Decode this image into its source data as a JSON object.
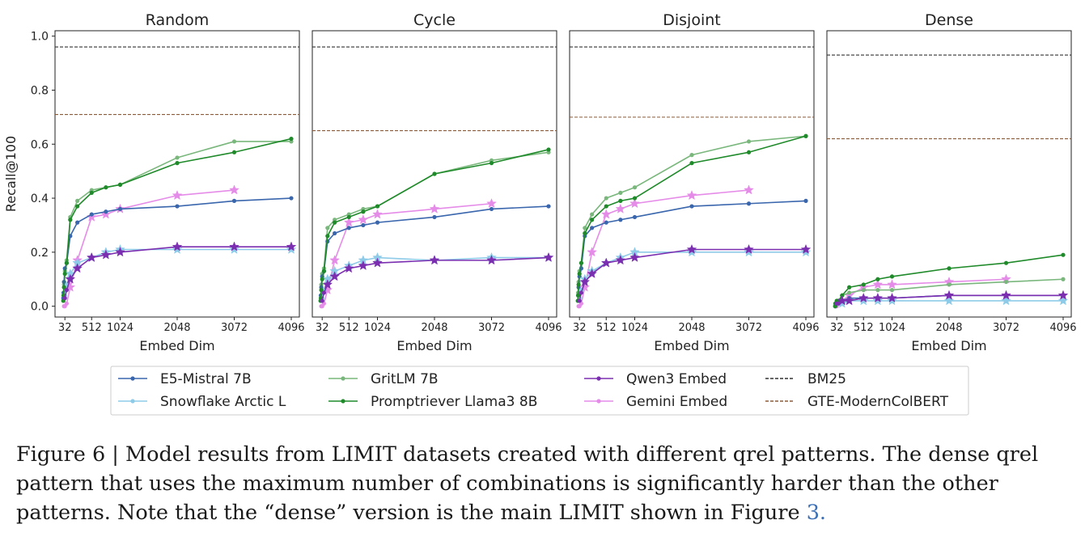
{
  "figure": {
    "caption_lines": [
      "Figure 6 | Model results from LIMIT datasets created with different qrel patterns. The dense qrel",
      "pattern that uses the maximum number of combinations is significantly harder than the other",
      "patterns. Note that the “dense” version is the main LIMIT shown in Figure "
    ],
    "caption_ref": "3."
  },
  "chart_data": {
    "type": "line",
    "ylabel": "Recall@100",
    "xlabel": "Embed Dim",
    "ylim": [
      0,
      1.0
    ],
    "xlim": [
      0,
      4096
    ],
    "yticks": [
      0.0,
      0.2,
      0.4,
      0.6,
      0.8,
      1.0
    ],
    "yticklabels": [
      "0.0",
      "0.2",
      "0.4",
      "0.6",
      "0.8",
      "1.0"
    ],
    "xticks": [
      32,
      512,
      1024,
      2048,
      3072,
      4096
    ],
    "xticklabels": [
      "32",
      "512",
      "1024",
      "2048",
      "3072",
      "4096"
    ],
    "grid": false,
    "legend_placement": "bottom",
    "legend": [
      {
        "name": "E5-Mistral 7B",
        "color": "#3a66ad",
        "style": "solid",
        "marker": "dot"
      },
      {
        "name": "Snowflake Arctic L",
        "color": "#8ecbe8",
        "style": "solid",
        "marker": "dot"
      },
      {
        "name": "GritLM 7B",
        "color": "#79b77c",
        "style": "solid",
        "marker": "dot"
      },
      {
        "name": "Promptriever Llama3 8B",
        "color": "#1f8a2a",
        "style": "solid",
        "marker": "dot"
      },
      {
        "name": "Qwen3 Embed",
        "color": "#7b2fb0",
        "style": "solid",
        "marker": "dot"
      },
      {
        "name": "Gemini Embed",
        "color": "#e58be8",
        "style": "solid",
        "marker": "dot"
      },
      {
        "name": "BM25",
        "color": "#333333",
        "style": "dashed",
        "marker": "none"
      },
      {
        "name": "GTE-ModernColBERT",
        "color": "#8a5c3a",
        "style": "dashed",
        "marker": "none"
      }
    ],
    "panels": [
      {
        "title": "Random",
        "series": [
          {
            "name": "E5-Mistral 7B",
            "x": [
              4,
              8,
              16,
              32,
              64,
              128,
              256,
              512,
              768,
              1024,
              2048,
              3072,
              4096
            ],
            "values": [
              0.03,
              0.05,
              0.09,
              0.14,
              0.16,
              0.26,
              0.31,
              0.34,
              0.35,
              0.36,
              0.37,
              0.39,
              0.4
            ]
          },
          {
            "name": "Snowflake Arctic L",
            "x": [
              32,
              64,
              128,
              256,
              512,
              768,
              1024,
              2048,
              3072,
              4096
            ],
            "values": [
              0.04,
              0.08,
              0.12,
              0.16,
              0.18,
              0.2,
              0.21,
              0.21,
              0.21,
              0.21
            ]
          },
          {
            "name": "GritLM 7B",
            "x": [
              4,
              8,
              16,
              32,
              64,
              128,
              256,
              512,
              768,
              1024,
              2048,
              3072,
              4096
            ],
            "values": [
              0.02,
              0.04,
              0.08,
              0.13,
              0.17,
              0.33,
              0.39,
              0.43,
              0.44,
              0.45,
              0.55,
              0.61,
              0.61
            ]
          },
          {
            "name": "Promptriever Llama3 8B",
            "x": [
              4,
              8,
              16,
              32,
              64,
              128,
              256,
              512,
              768,
              1024,
              2048,
              3072,
              4096
            ],
            "values": [
              0.02,
              0.04,
              0.07,
              0.12,
              0.16,
              0.32,
              0.37,
              0.42,
              0.44,
              0.45,
              0.53,
              0.57,
              0.62
            ]
          },
          {
            "name": "Qwen3 Embed",
            "x": [
              32,
              64,
              128,
              256,
              512,
              768,
              1024,
              2048,
              3072,
              4096
            ],
            "values": [
              0.03,
              0.06,
              0.1,
              0.14,
              0.18,
              0.19,
              0.2,
              0.22,
              0.22,
              0.22
            ]
          },
          {
            "name": "Gemini Embed",
            "x": [
              16,
              32,
              64,
              128,
              256,
              512,
              768,
              1024,
              2048,
              3072
            ],
            "values": [
              0.0,
              0.0,
              0.01,
              0.07,
              0.17,
              0.33,
              0.34,
              0.36,
              0.41,
              0.43
            ]
          }
        ],
        "baselines": [
          {
            "name": "BM25",
            "value": 0.96
          },
          {
            "name": "GTE-ModernColBERT",
            "value": 0.71
          }
        ]
      },
      {
        "title": "Cycle",
        "series": [
          {
            "name": "E5-Mistral 7B",
            "x": [
              4,
              8,
              16,
              32,
              64,
              128,
              256,
              512,
              768,
              1024,
              2048,
              3072,
              4096
            ],
            "values": [
              0.02,
              0.04,
              0.07,
              0.11,
              0.13,
              0.24,
              0.27,
              0.29,
              0.3,
              0.31,
              0.33,
              0.36,
              0.37
            ]
          },
          {
            "name": "Snowflake Arctic L",
            "x": [
              32,
              64,
              128,
              256,
              512,
              768,
              1024,
              2048,
              3072,
              4096
            ],
            "values": [
              0.03,
              0.06,
              0.1,
              0.13,
              0.15,
              0.17,
              0.18,
              0.17,
              0.18,
              0.18
            ]
          },
          {
            "name": "GritLM 7B",
            "x": [
              4,
              8,
              16,
              32,
              64,
              128,
              256,
              512,
              768,
              1024,
              2048,
              3072,
              4096
            ],
            "values": [
              0.02,
              0.04,
              0.08,
              0.12,
              0.14,
              0.29,
              0.32,
              0.34,
              0.36,
              0.37,
              0.49,
              0.54,
              0.57
            ]
          },
          {
            "name": "Promptriever Llama3 8B",
            "x": [
              4,
              8,
              16,
              32,
              64,
              128,
              256,
              512,
              768,
              1024,
              2048,
              3072,
              4096
            ],
            "values": [
              0.02,
              0.03,
              0.06,
              0.1,
              0.13,
              0.26,
              0.31,
              0.33,
              0.35,
              0.37,
              0.49,
              0.53,
              0.58
            ]
          },
          {
            "name": "Qwen3 Embed",
            "x": [
              32,
              64,
              128,
              256,
              512,
              768,
              1024,
              2048,
              3072,
              4096
            ],
            "values": [
              0.02,
              0.05,
              0.08,
              0.11,
              0.14,
              0.15,
              0.16,
              0.17,
              0.17,
              0.18
            ]
          },
          {
            "name": "Gemini Embed",
            "x": [
              16,
              32,
              64,
              128,
              256,
              512,
              768,
              1024,
              2048,
              3072
            ],
            "values": [
              0.0,
              0.0,
              0.01,
              0.06,
              0.17,
              0.31,
              0.32,
              0.34,
              0.36,
              0.38
            ]
          }
        ],
        "baselines": [
          {
            "name": "BM25",
            "value": 0.96
          },
          {
            "name": "GTE-ModernColBERT",
            "value": 0.65
          }
        ]
      },
      {
        "title": "Disjoint",
        "series": [
          {
            "name": "E5-Mistral 7B",
            "x": [
              4,
              8,
              16,
              32,
              64,
              128,
              256,
              512,
              768,
              1024,
              2048,
              3072,
              4096
            ],
            "values": [
              0.02,
              0.04,
              0.07,
              0.11,
              0.14,
              0.26,
              0.29,
              0.31,
              0.32,
              0.33,
              0.37,
              0.38,
              0.39
            ]
          },
          {
            "name": "Snowflake Arctic L",
            "x": [
              32,
              64,
              128,
              256,
              512,
              768,
              1024,
              2048,
              3072,
              4096
            ],
            "values": [
              0.03,
              0.06,
              0.1,
              0.13,
              0.16,
              0.18,
              0.2,
              0.2,
              0.2,
              0.2
            ]
          },
          {
            "name": "GritLM 7B",
            "x": [
              4,
              8,
              16,
              32,
              64,
              128,
              256,
              512,
              768,
              1024,
              2048,
              3072,
              4096
            ],
            "values": [
              0.02,
              0.05,
              0.09,
              0.13,
              0.16,
              0.29,
              0.34,
              0.4,
              0.42,
              0.44,
              0.56,
              0.61,
              0.63
            ]
          },
          {
            "name": "Promptriever Llama3 8B",
            "x": [
              4,
              8,
              16,
              32,
              64,
              128,
              256,
              512,
              768,
              1024,
              2048,
              3072,
              4096
            ],
            "values": [
              0.02,
              0.04,
              0.08,
              0.12,
              0.16,
              0.27,
              0.32,
              0.37,
              0.39,
              0.4,
              0.53,
              0.57,
              0.63
            ]
          },
          {
            "name": "Qwen3 Embed",
            "x": [
              32,
              64,
              128,
              256,
              512,
              768,
              1024,
              2048,
              3072,
              4096
            ],
            "values": [
              0.02,
              0.05,
              0.09,
              0.12,
              0.16,
              0.17,
              0.18,
              0.21,
              0.21,
              0.21
            ]
          },
          {
            "name": "Gemini Embed",
            "x": [
              16,
              32,
              64,
              128,
              256,
              512,
              768,
              1024,
              2048,
              3072
            ],
            "values": [
              0.0,
              0.0,
              0.01,
              0.07,
              0.2,
              0.34,
              0.36,
              0.38,
              0.41,
              0.43
            ]
          }
        ],
        "baselines": [
          {
            "name": "BM25",
            "value": 0.96
          },
          {
            "name": "GTE-ModernColBERT",
            "value": 0.7
          }
        ]
      },
      {
        "title": "Dense",
        "series": [
          {
            "name": "E5-Mistral 7B",
            "x": [
              4,
              8,
              16,
              32,
              64,
              128,
              256,
              512,
              768,
              1024,
              2048,
              3072,
              4096
            ],
            "values": [
              0.0,
              0.01,
              0.01,
              0.01,
              0.02,
              0.02,
              0.03,
              0.03,
              0.03,
              0.03,
              0.04,
              0.04,
              0.04
            ]
          },
          {
            "name": "Snowflake Arctic L",
            "x": [
              32,
              64,
              128,
              256,
              512,
              768,
              1024,
              2048,
              3072,
              4096
            ],
            "values": [
              0.01,
              0.01,
              0.01,
              0.02,
              0.02,
              0.02,
              0.02,
              0.02,
              0.02,
              0.02
            ]
          },
          {
            "name": "GritLM 7B",
            "x": [
              4,
              8,
              16,
              32,
              64,
              128,
              256,
              512,
              768,
              1024,
              2048,
              3072,
              4096
            ],
            "values": [
              0.0,
              0.01,
              0.01,
              0.02,
              0.02,
              0.04,
              0.05,
              0.06,
              0.06,
              0.06,
              0.08,
              0.09,
              0.1
            ]
          },
          {
            "name": "Promptriever Llama3 8B",
            "x": [
              4,
              8,
              16,
              32,
              64,
              128,
              256,
              512,
              768,
              1024,
              2048,
              3072,
              4096
            ],
            "values": [
              0.0,
              0.01,
              0.01,
              0.02,
              0.02,
              0.04,
              0.07,
              0.08,
              0.1,
              0.11,
              0.14,
              0.16,
              0.19
            ]
          },
          {
            "name": "Qwen3 Embed",
            "x": [
              32,
              64,
              128,
              256,
              512,
              768,
              1024,
              2048,
              3072,
              4096
            ],
            "values": [
              0.01,
              0.01,
              0.02,
              0.02,
              0.03,
              0.03,
              0.03,
              0.04,
              0.04,
              0.04
            ]
          },
          {
            "name": "Gemini Embed",
            "x": [
              16,
              32,
              64,
              128,
              256,
              512,
              768,
              1024,
              2048,
              3072
            ],
            "values": [
              0.0,
              0.0,
              0.01,
              0.02,
              0.04,
              0.07,
              0.08,
              0.08,
              0.09,
              0.1
            ]
          }
        ],
        "baselines": [
          {
            "name": "BM25",
            "value": 0.93
          },
          {
            "name": "GTE-ModernColBERT",
            "value": 0.62
          }
        ]
      }
    ]
  }
}
